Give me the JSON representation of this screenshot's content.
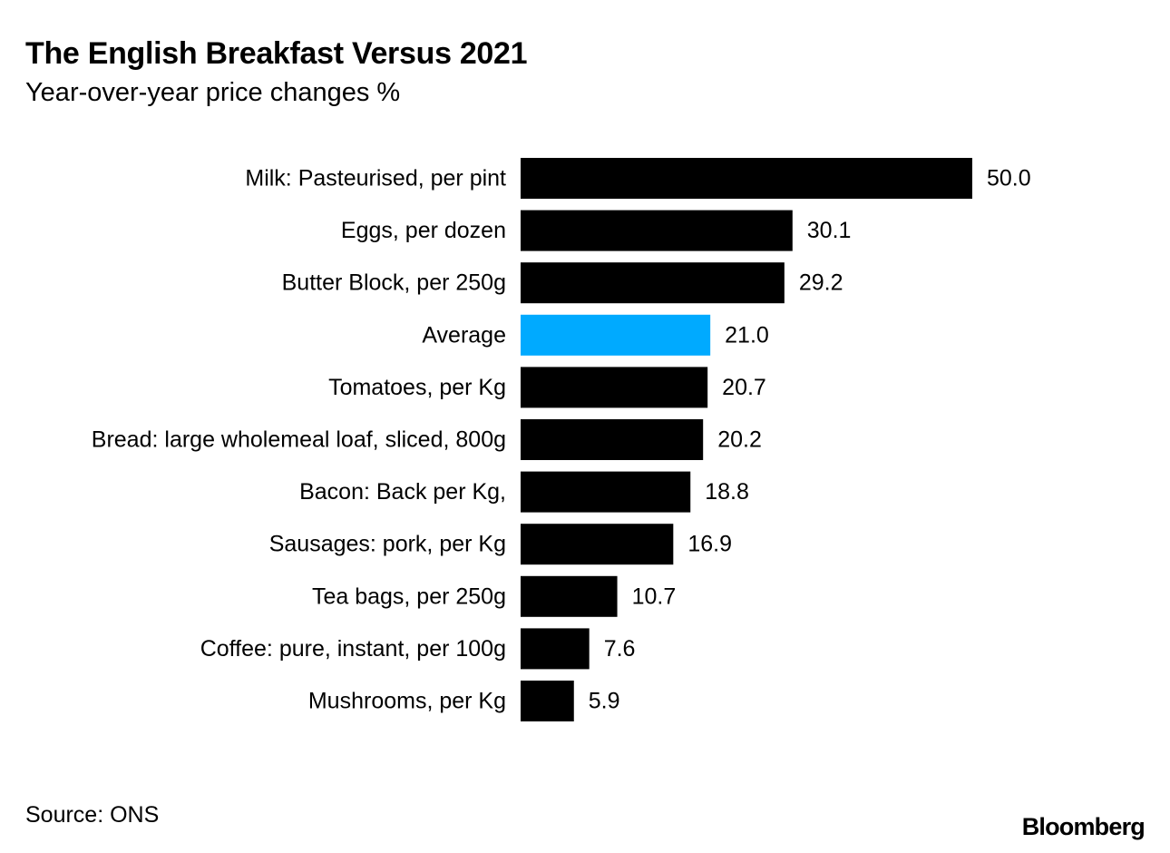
{
  "header": {
    "title": "The English Breakfast Versus 2021",
    "subtitle": "Year-over-year price changes %"
  },
  "footer": {
    "source": "Source: ONS",
    "brand": "Bloomberg"
  },
  "colors": {
    "bar": "#000000",
    "highlight": "#00aaff",
    "text": "#000000",
    "background": "#ffffff"
  },
  "chart_data": {
    "type": "bar",
    "orientation": "horizontal",
    "title": "The English Breakfast Versus 2021",
    "subtitle": "Year-over-year price changes %",
    "categories": [
      "Milk: Pasteurised, per pint",
      "Eggs, per dozen",
      "Butter Block, per 250g",
      "Average",
      "Tomatoes, per Kg",
      "Bread: large wholemeal loaf, sliced, 800g",
      "Bacon: Back per Kg,",
      "Sausages: pork, per Kg",
      "Tea bags, per 250g",
      "Coffee: pure, instant, per 100g",
      "Mushrooms, per Kg"
    ],
    "values": [
      50.0,
      30.1,
      29.2,
      21.0,
      20.7,
      20.2,
      18.8,
      16.9,
      10.7,
      7.6,
      5.9
    ],
    "value_labels": [
      "50.0",
      "30.1",
      "29.2",
      "21.0",
      "20.7",
      "20.2",
      "18.8",
      "16.9",
      "10.7",
      "7.6",
      "5.9"
    ],
    "highlight_category": "Average",
    "xlim": [
      0,
      50
    ],
    "grid": false,
    "legend": "none"
  }
}
